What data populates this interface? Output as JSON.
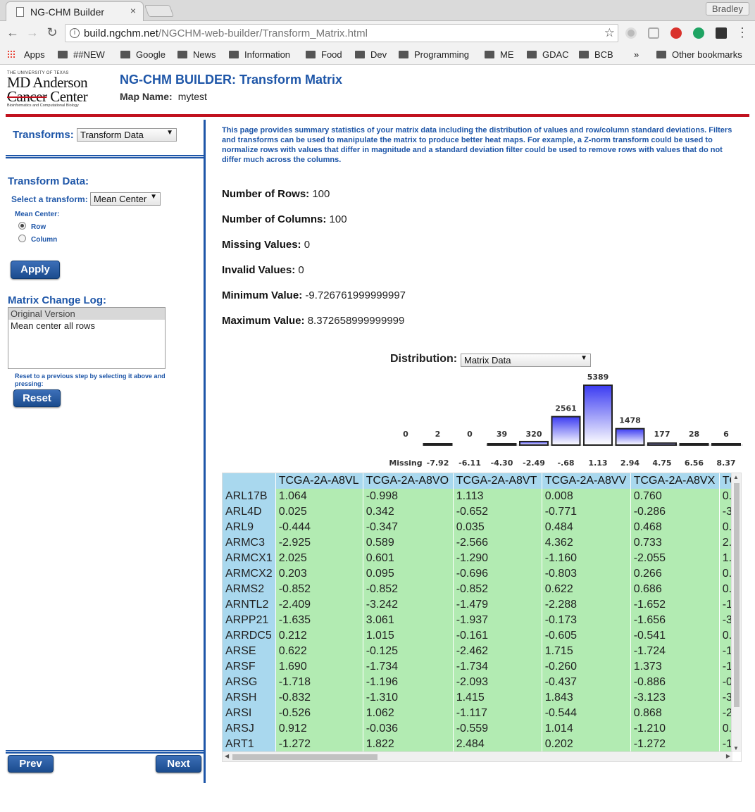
{
  "browser": {
    "tab_title": "NG-CHM Builder",
    "tab_close": "×",
    "profile": "Bradley",
    "url_host": "build.ngchm.net",
    "url_path": "/NGCHM-web-builder/Transform_Matrix.html",
    "bookmarks": [
      "Apps",
      "##NEW",
      "Google",
      "News",
      "Information",
      "Food",
      "Dev",
      "Programming",
      "ME",
      "GDAC",
      "BCB"
    ],
    "overflow": "»",
    "other_bookmarks": "Other bookmarks"
  },
  "logo": {
    "line1": "THE UNIVERSITY OF TEXAS",
    "line2": "MD Anderson",
    "line3a": "Cancer",
    "line3b": " Center",
    "line4": "Bioinformatics and Computational Biology"
  },
  "header": {
    "title": "NG-CHM BUILDER: Transform Matrix",
    "map_name_label": "Map Name:",
    "map_name": "mytest"
  },
  "sidebar": {
    "transforms_label": "Transforms:",
    "transforms_value": "Transform Data",
    "transform_data_heading": "Transform Data:",
    "select_transform_label": "Select a transform:",
    "select_transform_value": "Mean Center",
    "mean_center_label": "Mean Center:",
    "radio_row": "Row",
    "radio_column": "Column",
    "selected_radio": "Row",
    "apply": "Apply",
    "change_log_heading": "Matrix Change Log:",
    "change_log": [
      "Original Version",
      "Mean center all rows"
    ],
    "reset_hint": "Reset to a previous step by selecting it above and pressing:",
    "reset": "Reset",
    "prev": "Prev",
    "next": "Next"
  },
  "main": {
    "intro": "This page provides summary statistics of your matrix data including the distribution of values and row/column standard deviations. Filters and transforms can be used to manipulate the matrix to produce better heat maps. For example, a Z-norm transform could be used to normalize rows with values that differ in magnitude and a standard deviation filter could be used to remove rows with values that do not differ much across the columns.",
    "stats": [
      {
        "label": "Number of Rows:",
        "value": "100"
      },
      {
        "label": "Number of Columns:",
        "value": "100"
      },
      {
        "label": "Missing Values:",
        "value": "0"
      },
      {
        "label": "Invalid Values:",
        "value": "0"
      },
      {
        "label": "Minimum Value:",
        "value": "-9.726761999999997"
      },
      {
        "label": "Maximum Value:",
        "value": "8.372658999999999"
      }
    ],
    "distribution_label": "Distribution:",
    "distribution_value": "Matrix Data"
  },
  "chart_data": {
    "type": "bar",
    "categories": [
      "Missing",
      "-7.92",
      "-6.11",
      "-4.30",
      "-2.49",
      "-.68",
      "1.13",
      "2.94",
      "4.75",
      "6.56",
      "8.37"
    ],
    "values": [
      0,
      2,
      0,
      39,
      320,
      2561,
      5389,
      1478,
      177,
      28,
      6
    ],
    "title": "",
    "xlabel": "",
    "ylabel": ""
  },
  "table": {
    "columns": [
      "TCGA-2A-A8VL",
      "TCGA-2A-A8VO",
      "TCGA-2A-A8VT",
      "TCGA-2A-A8VV",
      "TCGA-2A-A8VX",
      "TC"
    ],
    "rows": [
      {
        "label": "ARL17B",
        "values": [
          "1.064",
          "-0.998",
          "1.113",
          "0.008",
          "0.760",
          "0."
        ]
      },
      {
        "label": "ARL4D",
        "values": [
          "0.025",
          "0.342",
          "-0.652",
          "-0.771",
          "-0.286",
          "-3"
        ]
      },
      {
        "label": "ARL9",
        "values": [
          "-0.444",
          "-0.347",
          "0.035",
          "0.484",
          "0.468",
          "0."
        ]
      },
      {
        "label": "ARMC3",
        "values": [
          "-2.925",
          "0.589",
          "-2.566",
          "4.362",
          "0.733",
          "2."
        ]
      },
      {
        "label": "ARMCX1",
        "values": [
          "2.025",
          "0.601",
          "-1.290",
          "-1.160",
          "-2.055",
          "1."
        ]
      },
      {
        "label": "ARMCX2",
        "values": [
          "0.203",
          "0.095",
          "-0.696",
          "-0.803",
          "0.266",
          "0."
        ]
      },
      {
        "label": "ARMS2",
        "values": [
          "-0.852",
          "-0.852",
          "-0.852",
          "0.622",
          "0.686",
          "0."
        ]
      },
      {
        "label": "ARNTL2",
        "values": [
          "-2.409",
          "-3.242",
          "-1.479",
          "-2.288",
          "-1.652",
          "-1"
        ]
      },
      {
        "label": "ARPP21",
        "values": [
          "-1.635",
          "3.061",
          "-1.937",
          "-0.173",
          "-1.656",
          "-3"
        ]
      },
      {
        "label": "ARRDC5",
        "values": [
          "0.212",
          "1.015",
          "-0.161",
          "-0.605",
          "-0.541",
          "0."
        ]
      },
      {
        "label": "ARSE",
        "values": [
          "0.622",
          "-0.125",
          "-2.462",
          "1.715",
          "-1.724",
          "-1"
        ]
      },
      {
        "label": "ARSF",
        "values": [
          "1.690",
          "-1.734",
          "-1.734",
          "-0.260",
          "1.373",
          "-1"
        ]
      },
      {
        "label": "ARSG",
        "values": [
          "-1.718",
          "-1.196",
          "-2.093",
          "-0.437",
          "-0.886",
          "-0"
        ]
      },
      {
        "label": "ARSH",
        "values": [
          "-0.832",
          "-1.310",
          "1.415",
          "1.843",
          "-3.123",
          "-3"
        ]
      },
      {
        "label": "ARSI",
        "values": [
          "-0.526",
          "1.062",
          "-1.117",
          "-0.544",
          "0.868",
          "-2"
        ]
      },
      {
        "label": "ARSJ",
        "values": [
          "0.912",
          "-0.036",
          "-0.559",
          "1.014",
          "-1.210",
          "0."
        ]
      },
      {
        "label": "ART1",
        "values": [
          "-1.272",
          "1.822",
          "2.484",
          "0.202",
          "-1.272",
          "-1"
        ]
      }
    ]
  },
  "colors": {
    "brand_blue": "#1e56a8",
    "header_red": "#c1121f",
    "row_header_bg": "#a9d8ee",
    "cell_bg": "#b2ebb2",
    "bar_fill": "#3b3bf2"
  }
}
